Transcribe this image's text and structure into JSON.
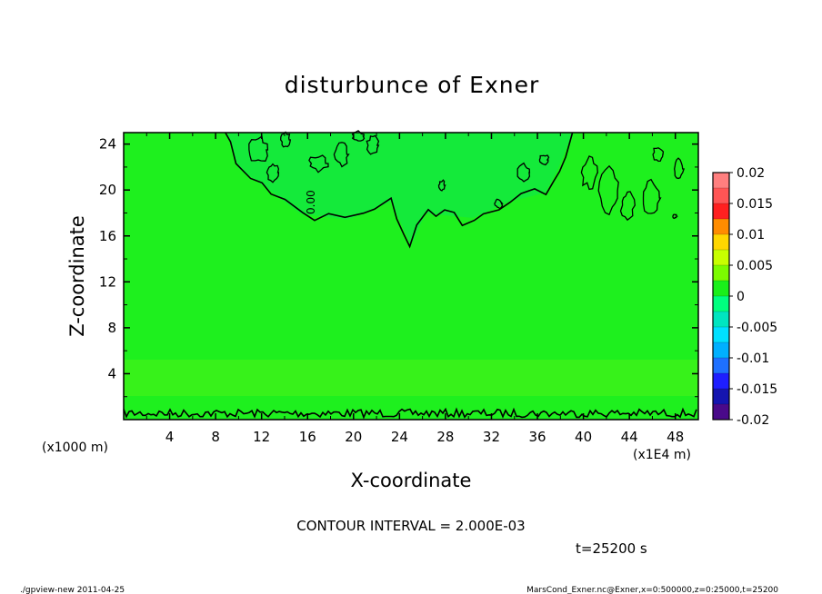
{
  "chart_data": {
    "type": "heatmap",
    "title": "disturbunce of Exner",
    "xlabel": "X-coordinate",
    "ylabel": "Z-coordinate",
    "x_unit_left": "(x1000 m)",
    "x_unit_right": "(x1E4 m)",
    "xlim": [
      0,
      50
    ],
    "ylim": [
      0,
      25
    ],
    "x_ticks": [
      "4",
      "8",
      "12",
      "16",
      "20",
      "24",
      "28",
      "32",
      "36",
      "40",
      "44",
      "48"
    ],
    "y_ticks": [
      "4",
      "8",
      "12",
      "16",
      "20",
      "24"
    ],
    "contour_interval_text": "CONTOUR INTERVAL = 2.000E-03",
    "time_text": "t=25200 s",
    "contour_label": "0.00",
    "field_value_approx": 0.0,
    "colorbar": {
      "labels": [
        "0.02",
        "0.015",
        "0.01",
        "0.005",
        "0",
        "-0.005",
        "-0.01",
        "-0.015",
        "-0.02"
      ],
      "colors": [
        "#ff7f7f",
        "#ff5555",
        "#ff2020",
        "#ff8c00",
        "#ffd700",
        "#c8ff00",
        "#7cfc00",
        "#1aef1a",
        "#00ff7f",
        "#00e5c0",
        "#00e0ff",
        "#00b0ff",
        "#1e70ff",
        "#1e1eff",
        "#1515b0",
        "#4a0a8a"
      ]
    }
  },
  "footer": {
    "left": "./gpview-new  2011-04-25",
    "right": "MarsCond_Exner.nc@Exner,x=0:500000,z=0:25000,t=25200"
  },
  "colors": {
    "field_main": "#1ef01e",
    "field_band": "#3cf21a",
    "field_high": "#14ea3a"
  }
}
